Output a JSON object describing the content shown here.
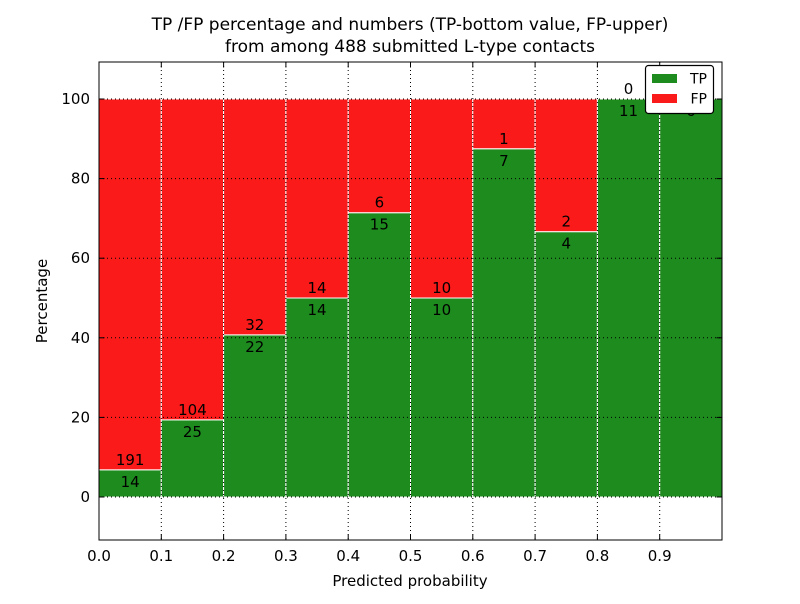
{
  "figure": {
    "background": "#ffffff"
  },
  "chart_data": {
    "type": "bar",
    "stacked": true,
    "title_line1": "TP /FP percentage and numbers (TP-bottom value, FP-upper)",
    "title_line2": "from among 488 submitted L-type contacts",
    "xlabel": "Predicted probability",
    "ylabel": "Percentage",
    "total_contacts": 488,
    "bin_width": 0.1,
    "bin_starts": [
      0.0,
      0.1,
      0.2,
      0.3,
      0.4,
      0.5,
      0.6,
      0.7,
      0.8,
      0.9
    ],
    "series": [
      {
        "name": "TP",
        "color": "#1e8b1e",
        "counts": [
          14,
          25,
          22,
          14,
          15,
          10,
          7,
          4,
          11,
          6
        ]
      },
      {
        "name": "FP",
        "color": "#fa1a1a",
        "counts": [
          191,
          104,
          32,
          14,
          6,
          10,
          1,
          2,
          0,
          0
        ]
      }
    ],
    "tp_percentages": [
      6.83,
      19.38,
      40.74,
      50.0,
      71.43,
      50.0,
      87.5,
      66.67,
      100.0,
      100.0
    ],
    "x_tick_labels": [
      "0.0",
      "0.1",
      "0.2",
      "0.3",
      "0.4",
      "0.5",
      "0.6",
      "0.7",
      "0.8",
      "0.9"
    ],
    "y_tick_values": [
      0,
      20,
      40,
      60,
      80,
      100
    ],
    "xlim": [
      0.0,
      1.0
    ],
    "ylim": [
      -10.8,
      109.3
    ],
    "grid": "dotted",
    "bar_edge_color": "#ffffff",
    "grid_color": "#000000",
    "legend": {
      "position": "upper right",
      "entries": [
        {
          "label": "TP",
          "color": "#1e8b1e"
        },
        {
          "label": "FP",
          "color": "#fa1a1a"
        }
      ]
    }
  }
}
